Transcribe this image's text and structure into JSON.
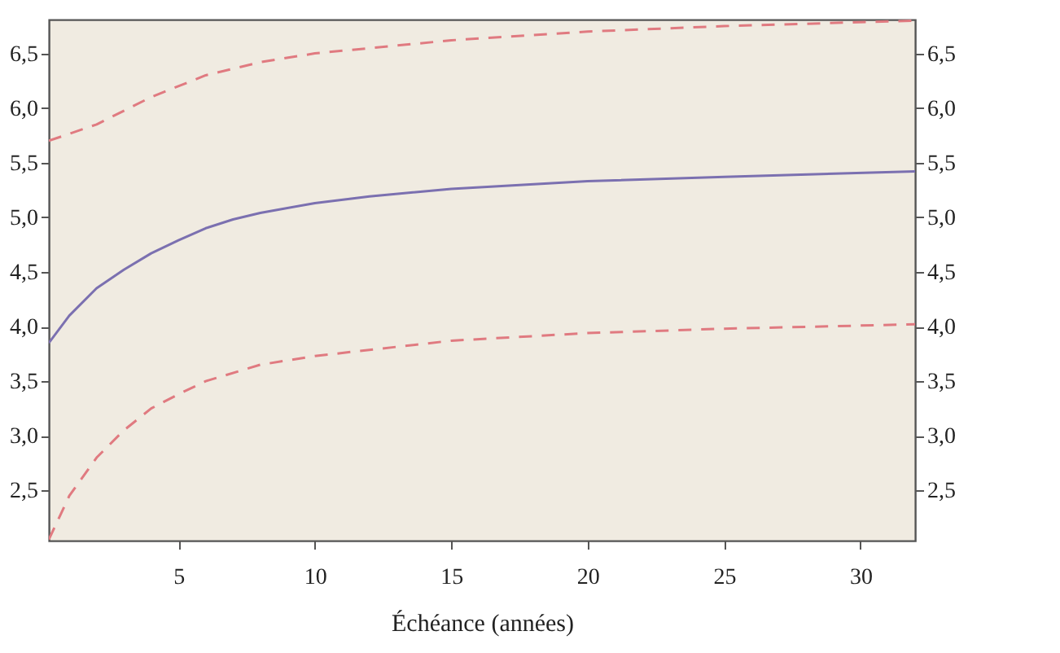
{
  "chart_data": {
    "type": "line",
    "xlabel": "Échéance (années)",
    "xlim": [
      0.25,
      32
    ],
    "xticks": [
      5,
      10,
      15,
      20,
      25,
      30
    ],
    "ylim": [
      2.04,
      6.81
    ],
    "yticks": [
      {
        "value": 2.5,
        "label": "2,5"
      },
      {
        "value": 3,
        "label": "3,0"
      },
      {
        "value": 3.5,
        "label": "3,5"
      },
      {
        "value": 4,
        "label": "4,0"
      },
      {
        "value": 4.5,
        "label": "4,5"
      },
      {
        "value": 5,
        "label": "5,0"
      },
      {
        "value": 5.5,
        "label": "5,5"
      },
      {
        "value": 6,
        "label": "6,0"
      },
      {
        "value": 6.5,
        "label": "6,5"
      }
    ],
    "y2lim": [
      2.04,
      6.81
    ],
    "y2ticks": [
      {
        "value": 2.5,
        "label": "2,5"
      },
      {
        "value": 3,
        "label": "3,0"
      },
      {
        "value": 3.5,
        "label": "3,5"
      },
      {
        "value": 4,
        "label": "4,0"
      },
      {
        "value": 4.5,
        "label": "4,5"
      },
      {
        "value": 5,
        "label": "5,0"
      },
      {
        "value": 5.5,
        "label": "5,5"
      },
      {
        "value": 6,
        "label": "6,0"
      },
      {
        "value": 6.5,
        "label": "6,5"
      }
    ],
    "grid": false,
    "marker": "none",
    "series": [
      {
        "color": "#e07a80",
        "line_style": "dashed",
        "x": [
          0.25,
          2,
          4,
          6,
          8,
          10,
          15,
          20,
          25,
          32
        ],
        "values": [
          5.7,
          5.85,
          6.1,
          6.3,
          6.42,
          6.5,
          6.62,
          6.7,
          6.75,
          6.8
        ]
      },
      {
        "color": "#7b70b0",
        "line_style": "solid",
        "x": [
          0.25,
          1,
          2,
          3,
          4,
          5,
          6,
          7,
          8,
          10,
          12,
          15,
          20,
          25,
          32
        ],
        "values": [
          3.85,
          4.1,
          4.35,
          4.52,
          4.67,
          4.79,
          4.9,
          4.98,
          5.04,
          5.13,
          5.19,
          5.26,
          5.33,
          5.37,
          5.42
        ]
      },
      {
        "color": "#e07a80",
        "line_style": "dashed",
        "x": [
          0.25,
          1,
          2,
          3,
          4,
          5,
          6,
          8,
          10,
          15,
          20,
          25,
          32
        ],
        "values": [
          2.05,
          2.45,
          2.8,
          3.05,
          3.25,
          3.38,
          3.5,
          3.65,
          3.73,
          3.87,
          3.94,
          3.98,
          4.02
        ]
      }
    ]
  }
}
